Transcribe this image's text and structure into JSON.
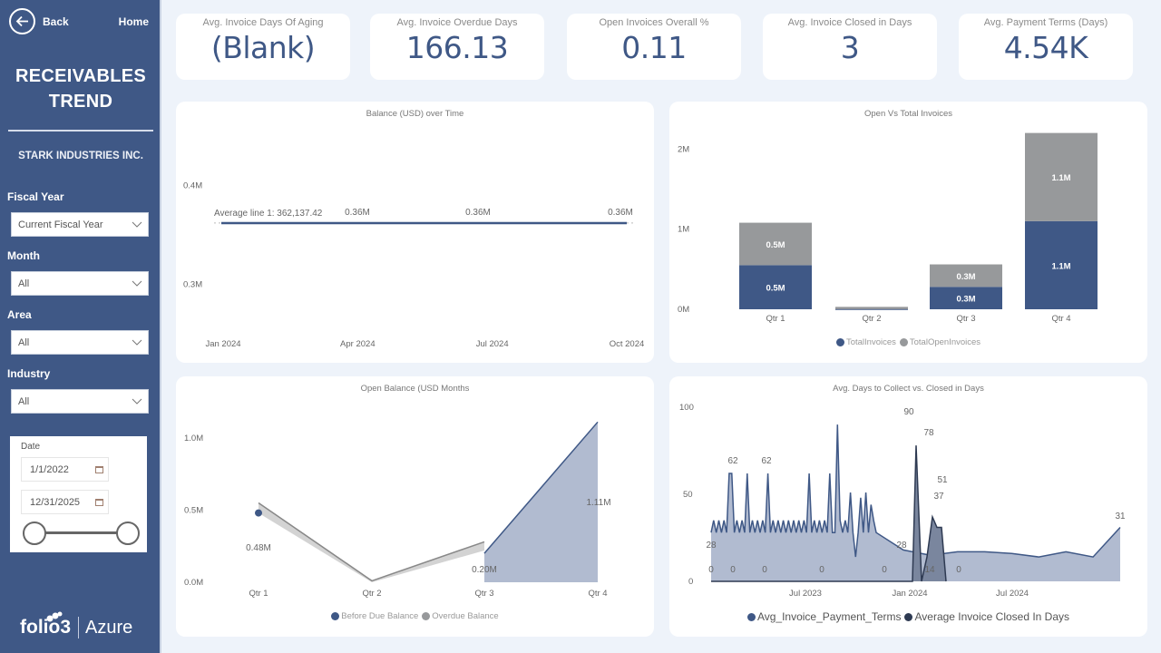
{
  "sidebar": {
    "back_label": "Back",
    "home_label": "Home",
    "title_line1": "RECEIVABLES",
    "title_line2": "TREND",
    "company": "STARK INDUSTRIES INC.",
    "filters": [
      {
        "label": "Fiscal Year",
        "value": "Current Fiscal Year"
      },
      {
        "label": "Month",
        "value": "All"
      },
      {
        "label": "Area",
        "value": "All"
      },
      {
        "label": "Industry",
        "value": "All"
      }
    ],
    "date": {
      "label": "Date",
      "start": "1/1/2022",
      "end": "12/31/2025"
    },
    "brand": {
      "name": "folio3",
      "product": "Azure"
    }
  },
  "kpis": [
    {
      "label": "Avg. Invoice Days Of Aging",
      "value": "(Blank)"
    },
    {
      "label": "Avg. Invoice Overdue Days",
      "value": "166.13"
    },
    {
      "label": "Open Invoices Overall %",
      "value": "0.11"
    },
    {
      "label": "Avg. Invoice Closed in Days",
      "value": "3"
    },
    {
      "label": "Avg. Payment Terms (Days)",
      "value": "4.54K"
    }
  ],
  "colors": {
    "primary": "#3f5886",
    "gray": "#97999b",
    "area": "#b1bbd0",
    "dark": "#2e3a52"
  },
  "chart_data": [
    {
      "id": "balance",
      "type": "line",
      "title": "Balance (USD) over Time",
      "x_ticks": [
        "Jan 2024",
        "Apr 2024",
        "Jul 2024",
        "Oct 2024"
      ],
      "y_ticks": [
        {
          "value": 0.4,
          "label": "0.4M"
        },
        {
          "value": 0.3,
          "label": "0.3M"
        }
      ],
      "ylim": [
        0.26,
        0.43
      ],
      "series": [
        {
          "name": "Balance",
          "x": [
            0,
            1,
            2,
            3
          ],
          "values": [
            0.362,
            0.362,
            0.362,
            0.362
          ]
        }
      ],
      "data_labels": [
        {
          "x": 1,
          "text": "0.36M"
        },
        {
          "x": 2,
          "text": "0.36M"
        },
        {
          "x": 3,
          "text": "0.36M"
        }
      ],
      "average_line": {
        "value": 0.36213742,
        "label": "Average line 1: 362,137.42"
      }
    },
    {
      "id": "openvstotal",
      "type": "bar",
      "stacked": true,
      "title": "Open Vs Total Invoices",
      "categories": [
        "Qtr 1",
        "Qtr 2",
        "Qtr 3",
        "Qtr 4"
      ],
      "y_ticks": [
        {
          "value": 0,
          "label": "0M"
        },
        {
          "value": 1,
          "label": "1M"
        },
        {
          "value": 2,
          "label": "2M"
        }
      ],
      "ylim": [
        0,
        2.5
      ],
      "series": [
        {
          "name": "TotalInvoices",
          "values": [
            0.55,
            0.02,
            0.28,
            1.1
          ],
          "labels": [
            "0.5M",
            "",
            "0.3M",
            "1.1M"
          ]
        },
        {
          "name": "TotalOpenInvoices",
          "values": [
            0.53,
            0.01,
            0.28,
            1.1
          ],
          "labels": [
            "0.5M",
            "",
            "0.3M",
            "1.1M"
          ]
        }
      ],
      "legend": "bottom"
    },
    {
      "id": "openbalance",
      "type": "area",
      "title": "Open Balance (USD Months",
      "categories": [
        "Qtr 1",
        "Qtr 2",
        "Qtr 3",
        "Qtr 4"
      ],
      "y_ticks": [
        {
          "value": 0,
          "label": "0.0M"
        },
        {
          "value": 0.5,
          "label": "0.5M"
        },
        {
          "value": 1.0,
          "label": "1.0M"
        }
      ],
      "ylim": [
        0,
        1.25
      ],
      "series": [
        {
          "name": "Before Due Balance",
          "values": [
            0.48,
            null,
            0.2,
            1.11
          ],
          "labels": [
            "0.48M",
            "",
            "0.20M",
            "1.11M"
          ]
        },
        {
          "name": "Overdue Balance",
          "values": [
            0.55,
            0.01,
            0.28,
            null
          ]
        }
      ],
      "legend": "bottom"
    },
    {
      "id": "dayscollect",
      "type": "area",
      "title": "Avg. Days to Collect vs. Closed in Days",
      "x_ticks": [
        "Jul 2023",
        "Jan 2024",
        "Jul 2024"
      ],
      "y_ticks": [
        {
          "value": 0,
          "label": "0"
        },
        {
          "value": 50,
          "label": "50"
        },
        {
          "value": 100,
          "label": "100"
        }
      ],
      "ylim": [
        0,
        100
      ],
      "series": [
        {
          "name": "Avg_Invoice_Payment_Terms",
          "values": [
            28,
            35,
            28,
            35,
            28,
            35,
            28,
            62,
            62,
            28,
            35,
            28,
            35,
            28,
            62,
            28,
            35,
            28,
            35,
            28,
            35,
            28,
            62,
            28,
            35,
            28,
            35,
            28,
            35,
            28,
            35,
            28,
            35,
            28,
            35,
            28,
            35,
            28,
            62,
            28,
            35,
            28,
            35,
            28,
            35,
            28,
            62,
            28,
            28,
            90,
            35,
            28,
            35,
            28,
            51,
            28,
            14,
            28,
            48,
            28,
            51,
            28,
            44,
            35,
            28,
            18,
            15,
            17,
            17,
            16,
            14,
            17,
            14,
            31
          ]
        },
        {
          "name": "Average Invoice Closed In Days",
          "values": [
            0,
            0,
            0,
            0,
            0,
            0,
            0,
            0,
            0,
            78,
            0,
            14,
            37,
            31,
            31,
            0
          ]
        }
      ],
      "data_labels": [
        "62",
        "62",
        "90",
        "78",
        "51",
        "37",
        "31",
        "28",
        "28",
        "0",
        "0",
        "0",
        "0",
        "0",
        "14",
        "0"
      ],
      "legend": "bottom"
    }
  ]
}
